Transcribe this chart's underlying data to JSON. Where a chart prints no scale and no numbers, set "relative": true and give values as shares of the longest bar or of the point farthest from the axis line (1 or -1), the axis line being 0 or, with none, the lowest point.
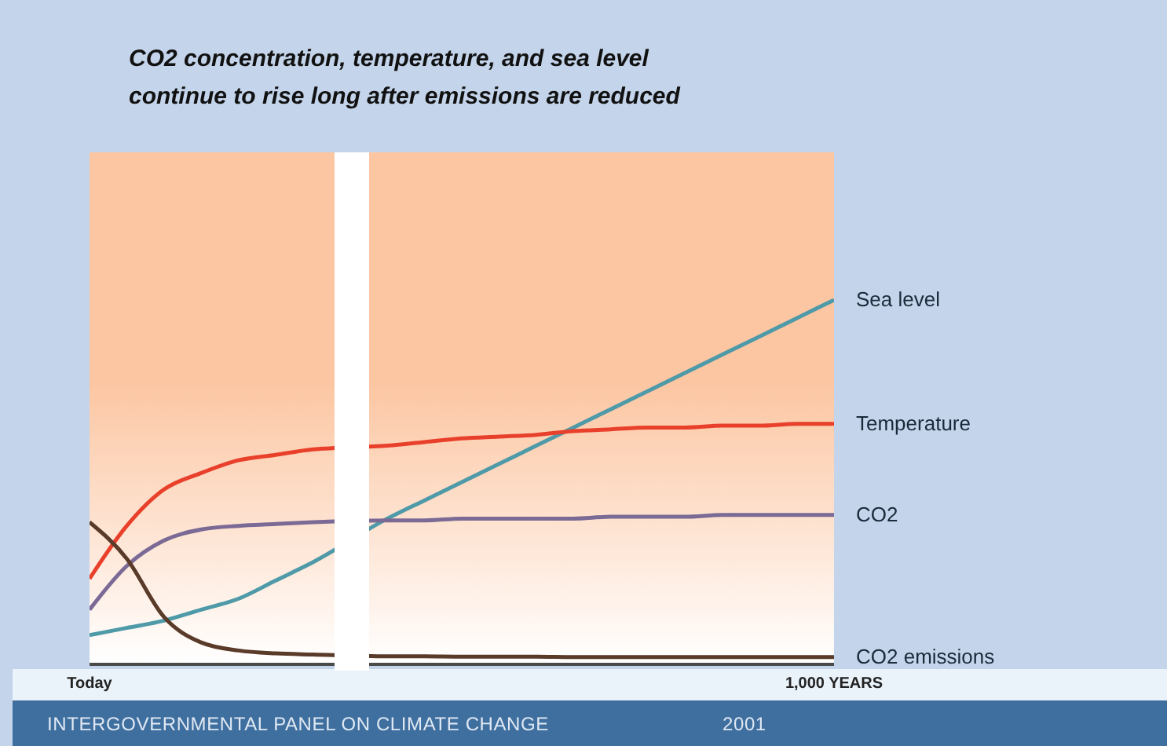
{
  "chart_data": {
    "type": "line",
    "title": "CO2 concentration, temperature, and sea level continue to rise long after emissions are reduced",
    "relative": true,
    "marker": "none",
    "line_style": "solid",
    "categories": [
      "Today",
      null,
      null,
      null,
      null,
      null,
      null,
      null,
      null,
      null,
      null,
      null,
      null,
      null,
      null,
      null,
      null,
      null,
      null,
      null,
      "1,000 YEARS"
    ],
    "annotations": [
      "INTERGOVERNMENTAL  PANEL ON CLIMATE CHANGE",
      "2001"
    ],
    "series": [
      {
        "name": "Sea level",
        "color": "#4f9aa8",
        "values": [
          0.08,
          0.1,
          0.12,
          0.15,
          0.18,
          0.23,
          0.28,
          null,
          0.4,
          0.45,
          0.5,
          0.55,
          0.6,
          0.65,
          0.7,
          0.75,
          0.8,
          0.85,
          0.9,
          0.95,
          1
        ]
      },
      {
        "name": "Temperature",
        "color": "#e8402a",
        "values": [
          0.235,
          0.38,
          0.48,
          0.525,
          0.56,
          0.575,
          0.59,
          null,
          0.6,
          0.61,
          0.62,
          0.625,
          0.63,
          0.64,
          0.645,
          0.65,
          0.65,
          0.655,
          0.655,
          0.66,
          0.66
        ]
      },
      {
        "name": "CO2",
        "color": "#7a6a95",
        "values": [
          0.15,
          0.27,
          0.34,
          0.37,
          0.38,
          0.385,
          0.39,
          null,
          0.395,
          0.395,
          0.4,
          0.4,
          0.4,
          0.4,
          0.405,
          0.405,
          0.405,
          0.41,
          0.41,
          0.41,
          0.41
        ]
      },
      {
        "name": "CO2 emissions",
        "color": "#5a3a28",
        "values": [
          0.39,
          0.29,
          0.13,
          0.06,
          0.038,
          0.03,
          0.027,
          null,
          0.022,
          0.022,
          0.021,
          0.021,
          0.021,
          0.02,
          0.02,
          0.02,
          0.02,
          0.02,
          0.02,
          0.02,
          0.02
        ]
      }
    ]
  }
}
